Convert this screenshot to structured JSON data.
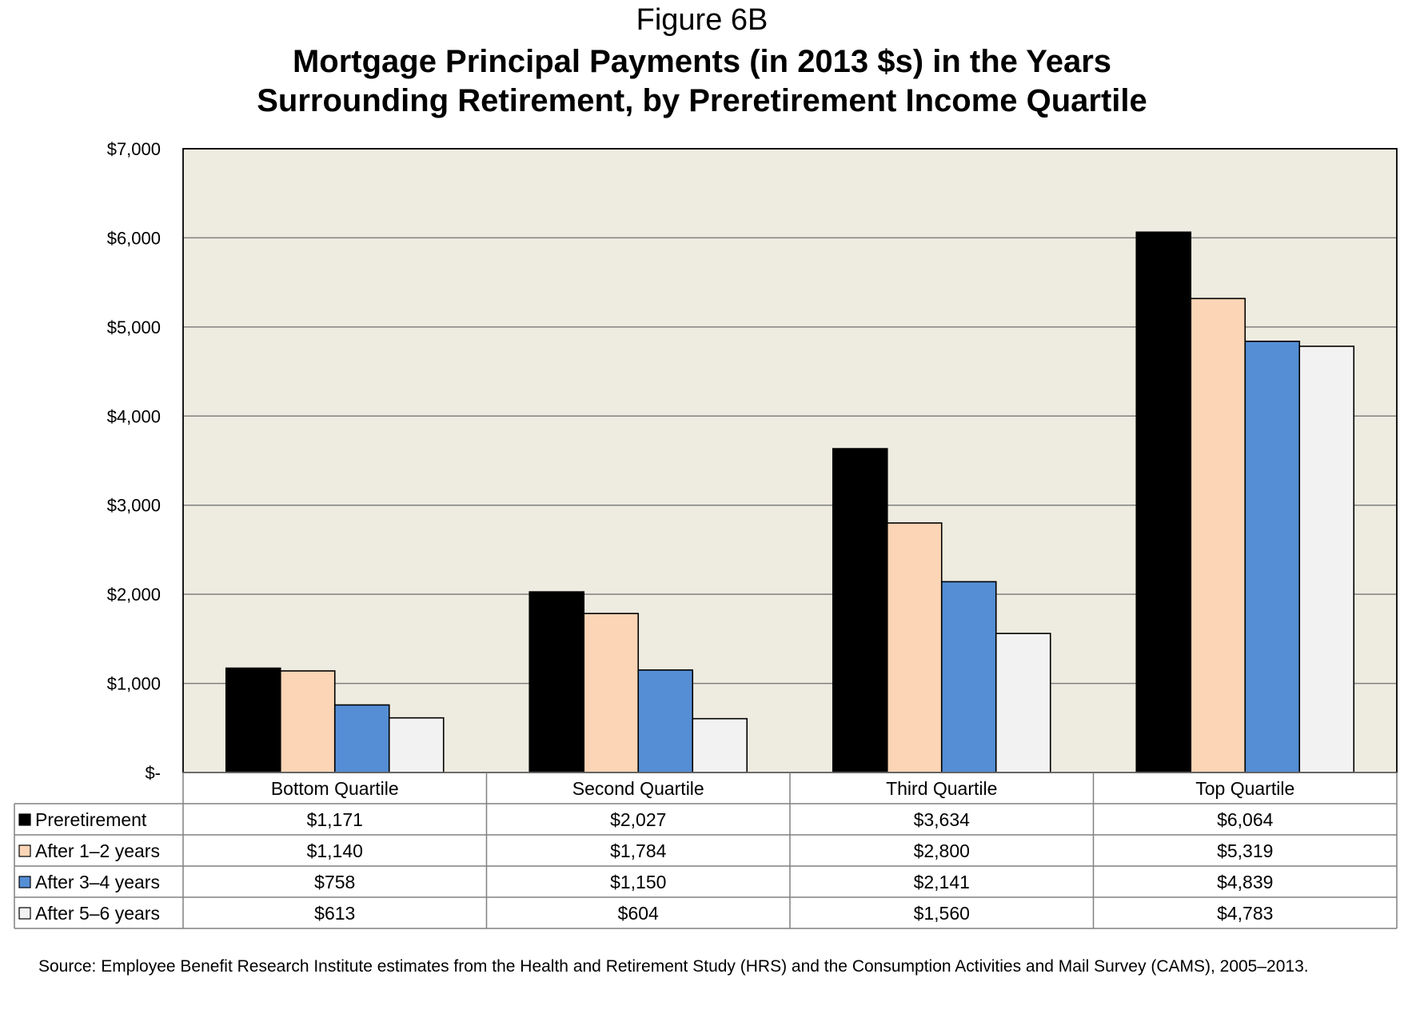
{
  "figure_label": "Figure 6B",
  "title_lines": [
    "Mortgage Principal Payments (in 2013 $s) in the Years",
    "Surrounding Retirement, by Preretirement Income Quartile"
  ],
  "source": "Source: Employee Benefit Research Institute estimates from the Health and Retirement Study (HRS) and the Consumption Activities and Mail Survey (CAMS), 2005–2013.",
  "chart_data": {
    "type": "bar",
    "title": "Mortgage Principal Payments (in 2013 $s) in the Years Surrounding Retirement, by Preretirement Income Quartile",
    "categories": [
      "Bottom Quartile",
      "Second Quartile",
      "Third Quartile",
      "Top Quartile"
    ],
    "series": [
      {
        "name": "Preretirement",
        "color": "#000000",
        "values": [
          1171,
          2027,
          3634,
          6064
        ],
        "labels": [
          "$1,171",
          "$2,027",
          "$3,634",
          "$6,064"
        ]
      },
      {
        "name": "After 1–2 years",
        "color": "#FBD5B5",
        "values": [
          1140,
          1784,
          2800,
          5319
        ],
        "labels": [
          "$1,140",
          "$1,784",
          "$2,800",
          "$5,319"
        ]
      },
      {
        "name": "After 3–4 years",
        "color": "#558ED5",
        "values": [
          758,
          1150,
          2141,
          4839
        ],
        "labels": [
          "$758",
          "$1,150",
          "$2,141",
          "$4,839"
        ]
      },
      {
        "name": "After 5–6 years",
        "color": "#F2F2F2",
        "values": [
          613,
          604,
          1560,
          4783
        ],
        "labels": [
          "$613",
          "$604",
          "$1,560",
          "$4,783"
        ]
      }
    ],
    "ylim": [
      0,
      7000
    ],
    "yticks": [
      0,
      1000,
      2000,
      3000,
      4000,
      5000,
      6000,
      7000
    ],
    "ytick_labels": [
      "$-",
      "$1,000",
      "$2,000",
      "$3,000",
      "$4,000",
      "$5,000",
      "$6,000",
      "$7,000"
    ],
    "grid": true,
    "plot_background": "#EEEBE0",
    "legend": "data-table"
  }
}
